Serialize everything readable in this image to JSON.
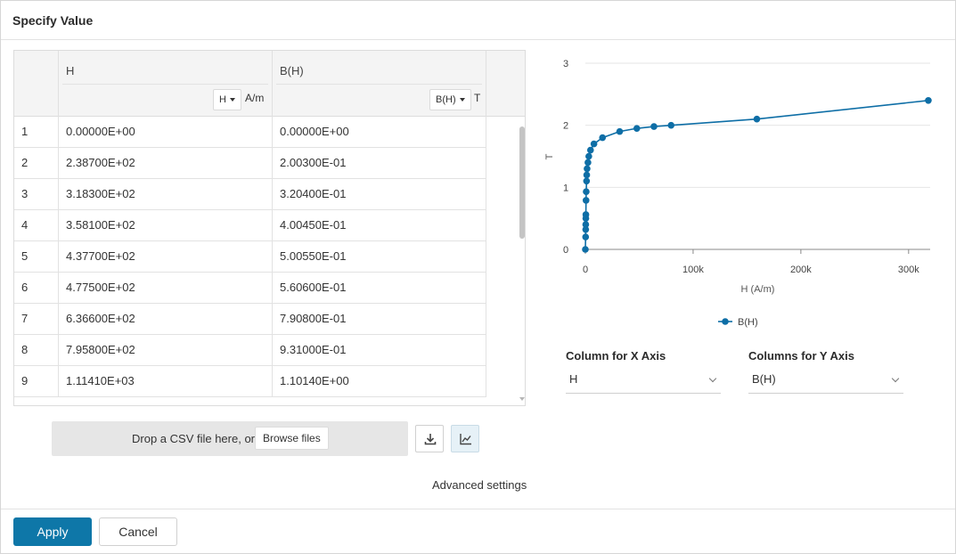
{
  "dialog": {
    "title": "Specify Value",
    "advanced_settings": "Advanced settings",
    "apply_label": "Apply",
    "cancel_label": "Cancel"
  },
  "table": {
    "columns": [
      {
        "title": "H",
        "unit_select": "H",
        "unit": "A/m"
      },
      {
        "title": "B(H)",
        "unit_select": "B(H)",
        "unit": "T"
      }
    ],
    "rows": [
      {
        "n": "1",
        "h": "0.00000E+00",
        "b": "0.00000E+00"
      },
      {
        "n": "2",
        "h": "2.38700E+02",
        "b": "2.00300E-01"
      },
      {
        "n": "3",
        "h": "3.18300E+02",
        "b": "3.20400E-01"
      },
      {
        "n": "4",
        "h": "3.58100E+02",
        "b": "4.00450E-01"
      },
      {
        "n": "5",
        "h": "4.37700E+02",
        "b": "5.00550E-01"
      },
      {
        "n": "6",
        "h": "4.77500E+02",
        "b": "5.60600E-01"
      },
      {
        "n": "7",
        "h": "6.36600E+02",
        "b": "7.90800E-01"
      },
      {
        "n": "8",
        "h": "7.95800E+02",
        "b": "9.31000E-01"
      },
      {
        "n": "9",
        "h": "1.11410E+03",
        "b": "1.10140E+00"
      }
    ]
  },
  "upload": {
    "drop_text": "Drop a CSV file here, or",
    "browse_label": "Browse files",
    "download_icon": "download-icon",
    "chart_icon": "line-chart-icon"
  },
  "axis_selectors": {
    "x_label": "Column for X Axis",
    "x_value": "H",
    "y_label": "Columns for Y Axis",
    "y_value": "B(H)"
  },
  "chart_data": {
    "type": "line",
    "xlabel": "H (A/m)",
    "ylabel": "T",
    "xlim": [
      0,
      320000
    ],
    "ylim": [
      0,
      3
    ],
    "x_ticks": [
      0,
      100000,
      200000,
      300000
    ],
    "x_tick_labels": [
      "0",
      "100k",
      "200k",
      "300k"
    ],
    "y_ticks": [
      0,
      1,
      2,
      3
    ],
    "y_tick_labels": [
      "0",
      "1",
      "2",
      "3"
    ],
    "grid": true,
    "legend": "bottom-center",
    "color": "#0e6ea6",
    "series": [
      {
        "name": "B(H)",
        "x": [
          0,
          238.7,
          318.3,
          358.1,
          437.7,
          477.5,
          636.6,
          795.8,
          1114.1,
          1273,
          1591,
          2387,
          3183,
          4775,
          7958,
          15915,
          31831,
          47746,
          63662,
          79577,
          159155,
          318310
        ],
        "y": [
          0,
          0.2003,
          0.3204,
          0.40045,
          0.50055,
          0.5606,
          0.7908,
          0.931,
          1.1014,
          1.2,
          1.3,
          1.4,
          1.5,
          1.6,
          1.7,
          1.8,
          1.9,
          1.95,
          1.98,
          2.0,
          2.1,
          2.4
        ]
      }
    ]
  }
}
